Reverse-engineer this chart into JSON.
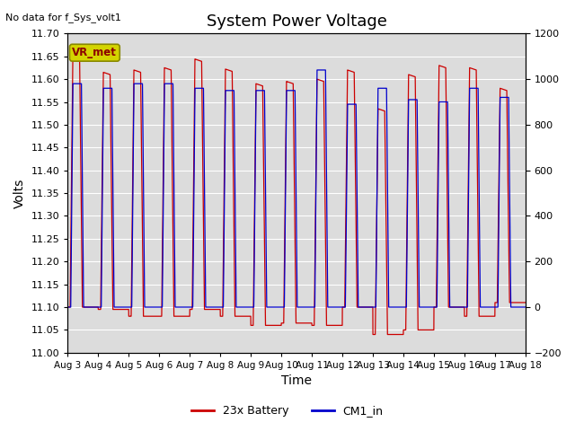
{
  "title": "System Power Voltage",
  "top_left_text": "No data for f_Sys_volt1",
  "ylabel_left": "Volts",
  "xlabel": "Time",
  "ylim_left": [
    11.0,
    11.7
  ],
  "ylim_right": [
    -200,
    1200
  ],
  "yticks_left": [
    11.0,
    11.05,
    11.1,
    11.15,
    11.2,
    11.25,
    11.3,
    11.35,
    11.4,
    11.45,
    11.5,
    11.55,
    11.6,
    11.65,
    11.7
  ],
  "yticks_right": [
    -200,
    0,
    200,
    400,
    600,
    800,
    1000,
    1200
  ],
  "xlim": [
    0,
    15
  ],
  "xtick_labels": [
    "Aug 3",
    "Aug 4",
    "Aug 5",
    "Aug 6",
    "Aug 7",
    "Aug 8",
    "Aug 9",
    "Aug 10",
    "Aug 11",
    "Aug 12",
    "Aug 13",
    "Aug 14",
    "Aug 15",
    "Aug 16",
    "Aug 17",
    "Aug 18"
  ],
  "legend_entries": [
    "23x Battery",
    "CM1_in"
  ],
  "line_colors": [
    "#cc0000",
    "#0000cc"
  ],
  "vr_met_label": "VR_met",
  "background_color": "#dcdcdc",
  "grid_color": "#ffffff",
  "title_fontsize": 13,
  "axis_fontsize": 10,
  "tick_fontsize": 8
}
